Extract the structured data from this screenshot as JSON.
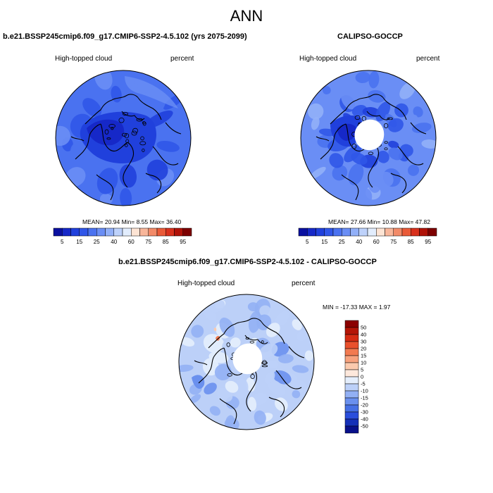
{
  "title": "ANN",
  "colors": {
    "ocean": "#5a82f0",
    "land_deep": "#1b3fd6",
    "coast": "#000000"
  },
  "chart_data": [
    {
      "type": "heatmap",
      "projection": "north-polar-stereographic",
      "title": "b.e21.BSSP245cmip6.f09_g17.CMIP6-SSP2-4.5.102 (yrs 2075-2099)",
      "variable": "High-topped cloud",
      "units": "percent",
      "stats": {
        "mean_label": "MEAN=",
        "mean": "20.94",
        "min_label": "Min=",
        "min": "8.55",
        "max_label": "Max=",
        "max": "36.40"
      },
      "colorbar": {
        "orientation": "horizontal",
        "levels": [
          5,
          10,
          15,
          20,
          25,
          30,
          40,
          50,
          60,
          70,
          75,
          80,
          85,
          90,
          95
        ],
        "tick_labels": [
          "5",
          "15",
          "25",
          "40",
          "60",
          "75",
          "85",
          "95"
        ],
        "colors": [
          "#0a10a0",
          "#1628c8",
          "#2040dc",
          "#3056e8",
          "#4a72f0",
          "#6a8ef5",
          "#92b0f8",
          "#bed2fb",
          "#e2edfd",
          "#fde4d4",
          "#f8b69a",
          "#f28a68",
          "#e95a38",
          "#d8301c",
          "#b01208",
          "#7d0000"
        ]
      }
    },
    {
      "type": "heatmap",
      "projection": "north-polar-stereographic",
      "title": "CALIPSO-GOCCP",
      "variable": "High-topped cloud",
      "units": "percent",
      "stats": {
        "mean_label": "MEAN=",
        "mean": "27.66",
        "min_label": "Min=",
        "min": "10.88",
        "max_label": "Max=",
        "max": "47.82"
      },
      "missing_data_region": "north-pole-cap",
      "colorbar": {
        "orientation": "horizontal",
        "levels": [
          5,
          10,
          15,
          20,
          25,
          30,
          40,
          50,
          60,
          70,
          75,
          80,
          85,
          90,
          95
        ],
        "tick_labels": [
          "5",
          "15",
          "25",
          "40",
          "60",
          "75",
          "85",
          "95"
        ],
        "colors": [
          "#0a10a0",
          "#1628c8",
          "#2040dc",
          "#3056e8",
          "#4a72f0",
          "#6a8ef5",
          "#92b0f8",
          "#bed2fb",
          "#e2edfd",
          "#fde4d4",
          "#f8b69a",
          "#f28a68",
          "#e95a38",
          "#d8301c",
          "#b01208",
          "#7d0000"
        ]
      }
    },
    {
      "type": "heatmap",
      "projection": "north-polar-stereographic",
      "title": "b.e21.BSSP245cmip6.f09_g17.CMIP6-SSP2-4.5.102 - CALIPSO-GOCCP",
      "variable": "High-topped cloud",
      "units": "percent",
      "stats_text": "MIN = -17.33 MAX =   1.97",
      "missing_data_region": "north-pole-cap",
      "colorbar": {
        "orientation": "vertical",
        "levels": [
          50,
          40,
          30,
          20,
          15,
          10,
          5,
          0,
          -5,
          -10,
          -15,
          -20,
          -30,
          -40,
          -50
        ],
        "tick_labels": [
          "50",
          "40",
          "30",
          "20",
          "15",
          "10",
          "5",
          "0",
          "-5",
          "-10",
          "-15",
          "-20",
          "-30",
          "-40",
          "-50"
        ],
        "colors": [
          "#8b0000",
          "#b41506",
          "#d52b12",
          "#e9502c",
          "#f27a50",
          "#f7a27e",
          "#fbcaae",
          "#fde8dc",
          "#e4eefc",
          "#bcd0f8",
          "#92b0f4",
          "#6a90ee",
          "#4670e4",
          "#2a4edc",
          "#1530b8",
          "#08108a"
        ]
      }
    }
  ]
}
